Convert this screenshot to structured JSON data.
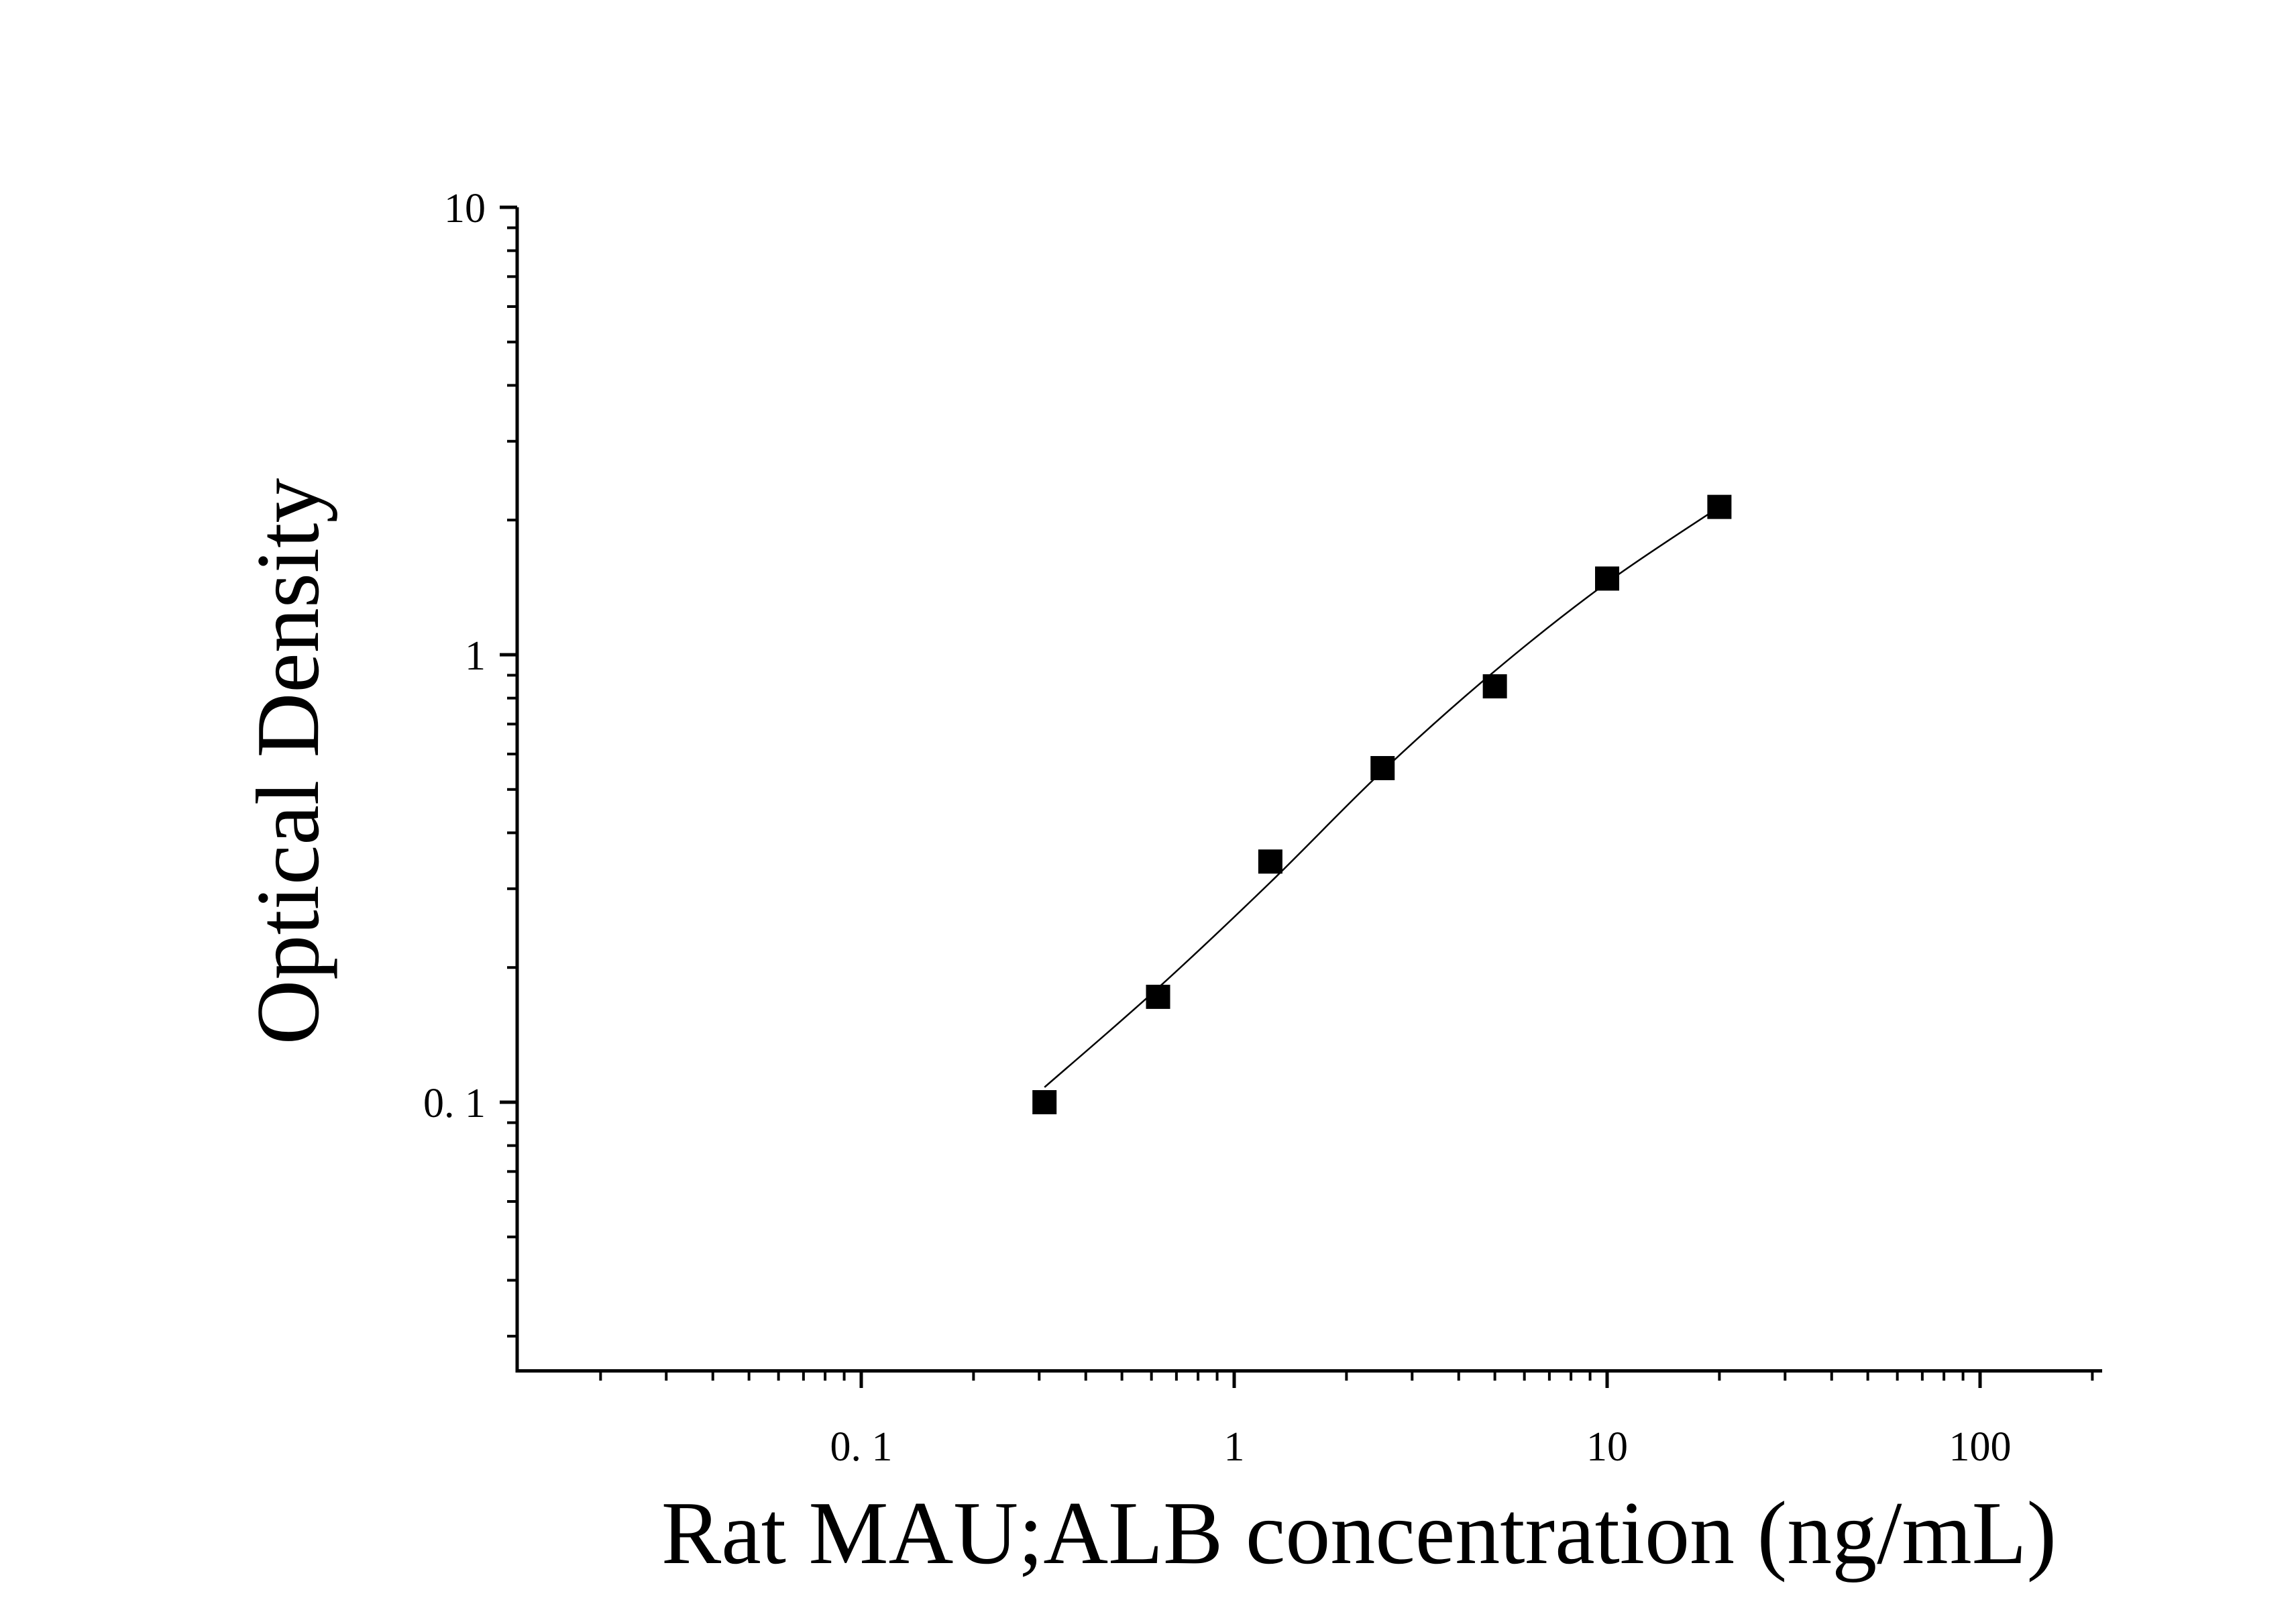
{
  "chart_data": {
    "type": "scatter",
    "xlabel": "Rat MAU;ALB concentration (ng/mL)",
    "ylabel": "Optical Density",
    "x_scale": "log",
    "y_scale": "log",
    "xlim": [
      0.013,
      200
    ],
    "ylim": [
      0.03,
      10
    ],
    "x_tick_labels": [
      "0. 1",
      "1",
      "10",
      "100"
    ],
    "y_tick_labels": [
      "0. 1",
      "1",
      "10"
    ],
    "grid": false,
    "legend": "none",
    "marker_color": "#000000",
    "series": [
      {
        "marker": "square",
        "x": [
          0.31,
          0.625,
          1.25,
          2.5,
          5,
          10,
          20
        ],
        "y": [
          0.1,
          0.172,
          0.345,
          0.558,
          0.85,
          1.48,
          2.14
        ]
      }
    ],
    "fit_line": {
      "x": [
        0.31,
        0.625,
        1.25,
        2.5,
        5,
        10,
        20
      ],
      "y": [
        0.108,
        0.18,
        0.31,
        0.55,
        0.92,
        1.45,
        2.14
      ]
    }
  }
}
